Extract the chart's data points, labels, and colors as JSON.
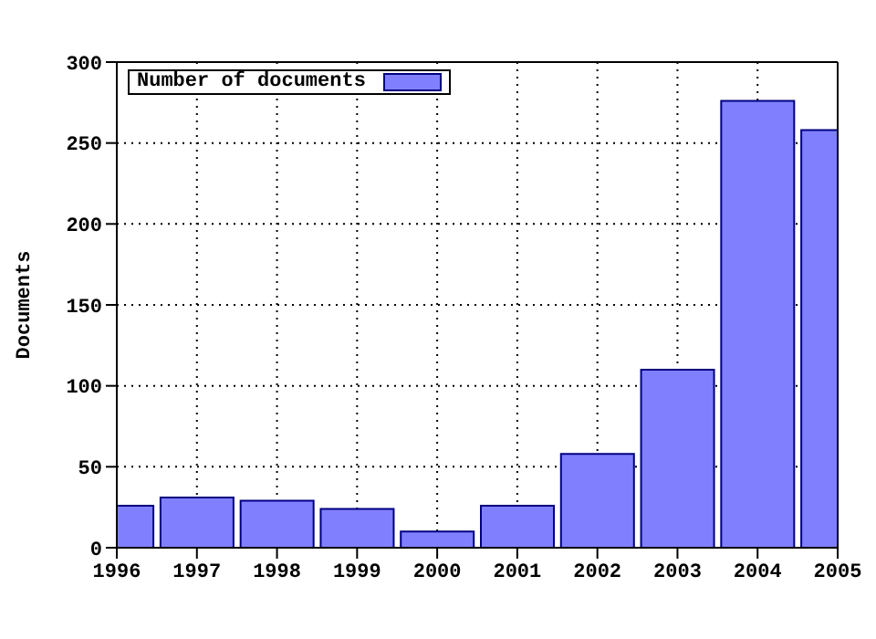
{
  "chart_data": {
    "type": "bar",
    "ylabel": "Documents",
    "x": [
      1996,
      1997,
      1998,
      1999,
      2000,
      2001,
      2002,
      2003,
      2004,
      2005
    ],
    "series": [
      {
        "name": "Number of documents",
        "color": "#8080ff",
        "values": [
          26,
          31,
          29,
          24,
          10,
          26,
          58,
          110,
          276,
          258
        ]
      }
    ],
    "xlim": [
      1996,
      2005
    ],
    "xticks": [
      1996,
      1997,
      1998,
      1999,
      2000,
      2001,
      2002,
      2003,
      2004,
      2005
    ],
    "ylim": [
      0,
      300
    ],
    "yticks": [
      0,
      50,
      100,
      150,
      200,
      250,
      300
    ],
    "grid": true,
    "legend": "top left"
  }
}
